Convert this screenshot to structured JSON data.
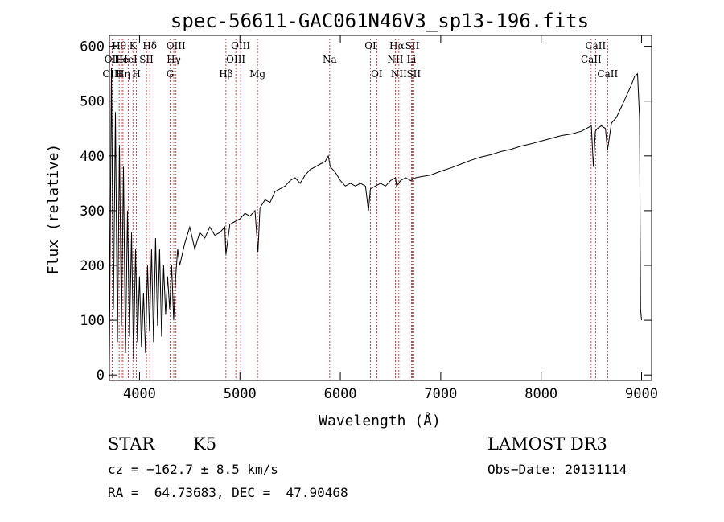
{
  "chart_data": {
    "type": "line",
    "title": "spec-56611-GAC061N46V3_sp13-196.fits",
    "xlabel": "Wavelength (Å)",
    "ylabel": "Flux (relative)",
    "xlim": [
      3700,
      9100
    ],
    "ylim": [
      -10,
      620
    ],
    "xticks": [
      4000,
      5000,
      6000,
      7000,
      8000,
      9000
    ],
    "xtick_labels": [
      "4000",
      "5000",
      "6000",
      "7000",
      "8000",
      "9000"
    ],
    "yticks": [
      0,
      100,
      200,
      300,
      400,
      500,
      600
    ],
    "ytick_labels": [
      "0",
      "100",
      "200",
      "300",
      "400",
      "500",
      "600"
    ],
    "line_color": "#000000",
    "marker_color": "#b22222",
    "spectrum": {
      "x": [
        3700,
        3720,
        3740,
        3760,
        3780,
        3800,
        3820,
        3840,
        3860,
        3880,
        3900,
        3920,
        3940,
        3960,
        3980,
        4000,
        4020,
        4040,
        4060,
        4080,
        4100,
        4120,
        4140,
        4160,
        4180,
        4200,
        4220,
        4240,
        4260,
        4280,
        4300,
        4320,
        4340,
        4360,
        4380,
        4400,
        4450,
        4500,
        4550,
        4600,
        4650,
        4700,
        4750,
        4800,
        4850,
        4860,
        4900,
        4950,
        5000,
        5050,
        5100,
        5150,
        5180,
        5200,
        5250,
        5300,
        5350,
        5400,
        5450,
        5500,
        5550,
        5600,
        5650,
        5700,
        5750,
        5800,
        5850,
        5880,
        5900,
        5950,
        6000,
        6050,
        6100,
        6150,
        6200,
        6250,
        6280,
        6300,
        6350,
        6400,
        6450,
        6500,
        6550,
        6560,
        6600,
        6650,
        6700,
        6750,
        6800,
        6900,
        7000,
        7100,
        7200,
        7300,
        7400,
        7500,
        7600,
        7700,
        7800,
        7900,
        8000,
        8100,
        8200,
        8300,
        8400,
        8450,
        8500,
        8520,
        8540,
        8560,
        8600,
        8640,
        8660,
        8700,
        8750,
        8800,
        8850,
        8900,
        8930,
        8960,
        8980,
        8990,
        9000
      ],
      "y": [
        20,
        560,
        120,
        480,
        60,
        420,
        90,
        380,
        40,
        300,
        70,
        260,
        30,
        230,
        60,
        180,
        50,
        150,
        40,
        200,
        80,
        230,
        60,
        250,
        90,
        230,
        70,
        200,
        110,
        180,
        120,
        200,
        100,
        180,
        230,
        200,
        240,
        270,
        230,
        260,
        250,
        270,
        255,
        260,
        270,
        220,
        275,
        280,
        285,
        295,
        290,
        300,
        225,
        305,
        320,
        315,
        335,
        340,
        345,
        355,
        360,
        350,
        365,
        375,
        380,
        385,
        390,
        400,
        380,
        370,
        355,
        345,
        350,
        345,
        350,
        345,
        300,
        340,
        345,
        350,
        345,
        355,
        360,
        345,
        355,
        360,
        355,
        360,
        362,
        365,
        372,
        378,
        385,
        392,
        398,
        402,
        408,
        412,
        418,
        422,
        427,
        432,
        437,
        440,
        445,
        450,
        455,
        380,
        445,
        450,
        455,
        450,
        410,
        460,
        470,
        490,
        510,
        530,
        545,
        550,
        470,
        120,
        100
      ]
    },
    "line_markers": [
      {
        "name": "OII",
        "x": 3727,
        "row": 1
      },
      {
        "name": "OIII",
        "x": 3727,
        "row": 2
      },
      {
        "name": "Hθ",
        "x": 3797,
        "row": 0
      },
      {
        "name": "He",
        "x": 3820,
        "row": 1
      },
      {
        "name": "Hη",
        "x": 3835,
        "row": 2
      },
      {
        "name": "K",
        "x": 3934,
        "row": 0
      },
      {
        "name": "HeI",
        "x": 3889,
        "row": 1
      },
      {
        "name": "H",
        "x": 3969,
        "row": 2
      },
      {
        "name": "SII",
        "x": 4069,
        "row": 1
      },
      {
        "name": "Hδ",
        "x": 4102,
        "row": 0
      },
      {
        "name": "OIII",
        "x": 4363,
        "row": 0
      },
      {
        "name": "Hγ",
        "x": 4341,
        "row": 1
      },
      {
        "name": "G",
        "x": 4305,
        "row": 2
      },
      {
        "name": "Hβ",
        "x": 4861,
        "row": 2
      },
      {
        "name": "OIII",
        "x": 4959,
        "row": 1
      },
      {
        "name": "OIII",
        "x": 5007,
        "row": 0
      },
      {
        "name": "Mg",
        "x": 5175,
        "row": 2
      },
      {
        "name": "Na",
        "x": 5894,
        "row": 1
      },
      {
        "name": "OI",
        "x": 6300,
        "row": 0
      },
      {
        "name": "OI",
        "x": 6363,
        "row": 2
      },
      {
        "name": "Hα",
        "x": 6563,
        "row": 0
      },
      {
        "name": "NII",
        "x": 6548,
        "row": 1
      },
      {
        "name": "NII",
        "x": 6583,
        "row": 2
      },
      {
        "name": "SII",
        "x": 6717,
        "row": 0
      },
      {
        "name": "Li",
        "x": 6708,
        "row": 1
      },
      {
        "name": "SII",
        "x": 6731,
        "row": 2
      },
      {
        "name": "CaII",
        "x": 8542,
        "row": 0
      },
      {
        "name": "CaII",
        "x": 8498,
        "row": 1
      },
      {
        "name": "CaII",
        "x": 8662,
        "row": 2
      }
    ]
  },
  "info": {
    "object_class": "STAR",
    "subclass": "K5",
    "survey": "LAMOST DR3",
    "redshift_line": "cz = −162.7 ± 8.5 km/s",
    "obs_date_line": "Obs−Date: 20131114",
    "coords_line": "RA =  64.73683, DEC =  47.90468"
  }
}
